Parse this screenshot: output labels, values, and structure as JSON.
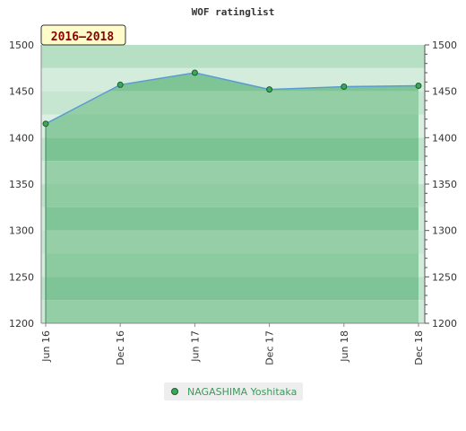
{
  "chart_data": {
    "type": "line",
    "title": "WOF ratinglist",
    "period_label": "2016–2018",
    "categories": [
      "Jun 16",
      "Dec 16",
      "Jun 17",
      "Dec 17",
      "Jun 18",
      "Dec 18"
    ],
    "series": [
      {
        "name": "NAGASHIMA Yoshitaka",
        "values": [
          1415,
          1457,
          1470,
          1452,
          1455,
          1456
        ]
      }
    ],
    "ylim": [
      1200,
      1500
    ],
    "yticks": [
      1200,
      1250,
      1300,
      1350,
      1400,
      1450,
      1500
    ],
    "grid": true,
    "legend_position": "bottom",
    "colors": {
      "line": "#5b9bd5",
      "marker": "#3aa85a",
      "area": "#7fc495",
      "band_light": "#d4ecdc",
      "band_dark": "#7cc394",
      "period_bg": "#fffcc9"
    }
  }
}
